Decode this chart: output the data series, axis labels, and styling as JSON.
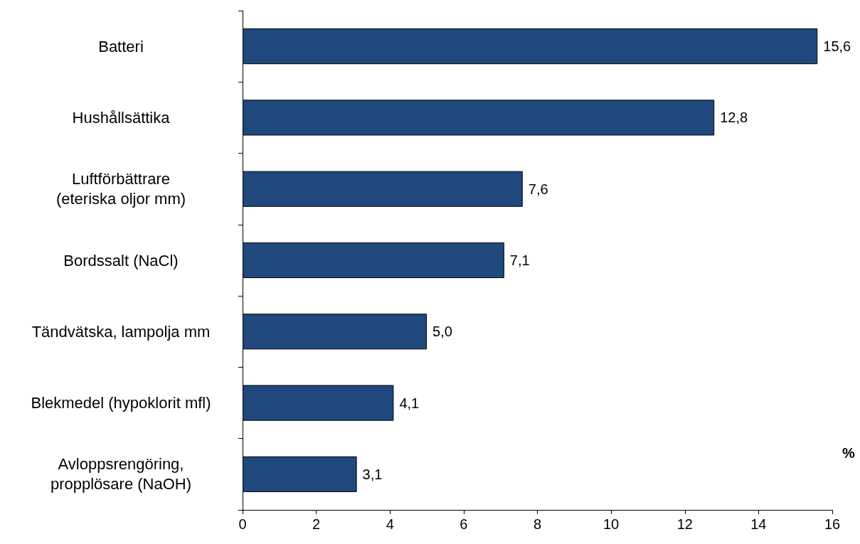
{
  "chart_data": {
    "type": "bar",
    "orientation": "horizontal",
    "xlabel": "%",
    "categories": [
      "Batteri",
      "Hushållsättika",
      "Luftförbättrare\n(eteriska oljor mm)",
      "Bordssalt (NaCl)",
      "Tändvätska, lampolja mm",
      "Blekmedel (hypoklorit mfl)",
      "Avloppsrengöring,\npropplösare (NaOH)"
    ],
    "values": [
      15.6,
      12.8,
      7.6,
      7.1,
      5.0,
      4.1,
      3.1
    ],
    "value_labels": [
      "15,6",
      "12,8",
      "7,6",
      "7,1",
      "5,0",
      "4,1",
      "3,1"
    ],
    "color": "#1f497d",
    "xlim": [
      0,
      16
    ],
    "xticks": [
      0,
      2,
      4,
      6,
      8,
      10,
      12,
      14,
      16
    ],
    "grid": false
  }
}
